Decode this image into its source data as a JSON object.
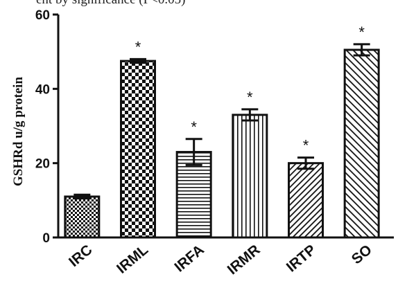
{
  "top_caption": "ent by significance (P<0.05)",
  "chart_data": {
    "type": "bar",
    "title": "",
    "xlabel": "",
    "ylabel": "GSHRd u/g protein",
    "ylim": [
      0,
      60
    ],
    "yticks": [
      0,
      20,
      40,
      60
    ],
    "categories": [
      "IRC",
      "IRML",
      "IRFA",
      "IRMR",
      "IRTP",
      "SO"
    ],
    "values": [
      11,
      47.5,
      23,
      33,
      20,
      50.5
    ],
    "errors": [
      0.5,
      0.5,
      3.5,
      1.5,
      1.5,
      1.5
    ],
    "annotations": [
      "",
      "*",
      "*",
      "*",
      "*",
      "*"
    ],
    "patterns": [
      "checker-fine",
      "checker-coarse",
      "horizontal-lines",
      "vertical-lines",
      "diagonal-lines",
      "diagonal-lines-wide"
    ],
    "colors": {
      "bar_stroke": "#111111",
      "fill_ink": "#111111",
      "background": "#ffffff"
    }
  }
}
